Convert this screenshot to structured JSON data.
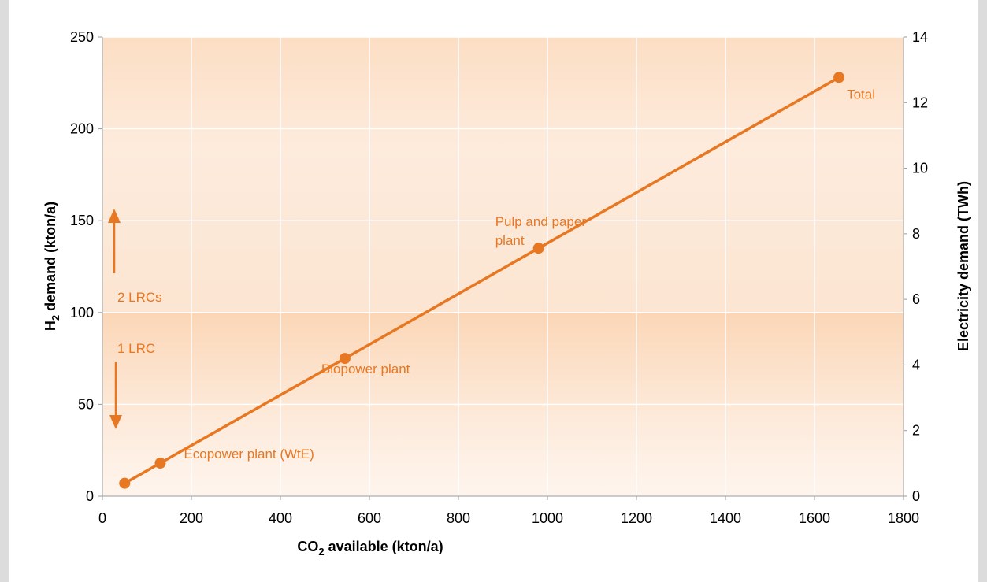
{
  "chart_data": {
    "type": "line",
    "title": "",
    "xlabel": {
      "main": "CO",
      "sub": "2",
      "rest": " available (kton/a)"
    },
    "ylabel": {
      "main": "H",
      "sub": "2",
      "rest": " demand (kton/a)"
    },
    "y2label": "Electricity demand (TWh)",
    "xlim": [
      0,
      1800
    ],
    "ylim": [
      0,
      250
    ],
    "y2lim": [
      0,
      14
    ],
    "x_ticks": [
      "0",
      "200",
      "400",
      "600",
      "800",
      "1000",
      "1200",
      "1400",
      "1600",
      "1800"
    ],
    "y_ticks": [
      "0",
      "50",
      "100",
      "150",
      "200",
      "250"
    ],
    "y2_ticks": [
      "0",
      "2",
      "4",
      "6",
      "8",
      "10",
      "12",
      "14"
    ],
    "grid": true,
    "series": [
      {
        "x": [
          50,
          130,
          545,
          980,
          1655
        ],
        "y": [
          7,
          18,
          75,
          135,
          228
        ],
        "labels": [
          "",
          "Ecopower plant (WtE)",
          "Biopower plant",
          "Pulp and paper\nplant",
          "Total"
        ]
      }
    ],
    "annotations": {
      "lrc2": "2 LRCs",
      "lrc1": "1 LRC"
    },
    "colors": {
      "line": "#e87722",
      "band_upper": "#fde9d9",
      "band_lower": "#fbd9bd",
      "grid": "#ffffff"
    }
  }
}
